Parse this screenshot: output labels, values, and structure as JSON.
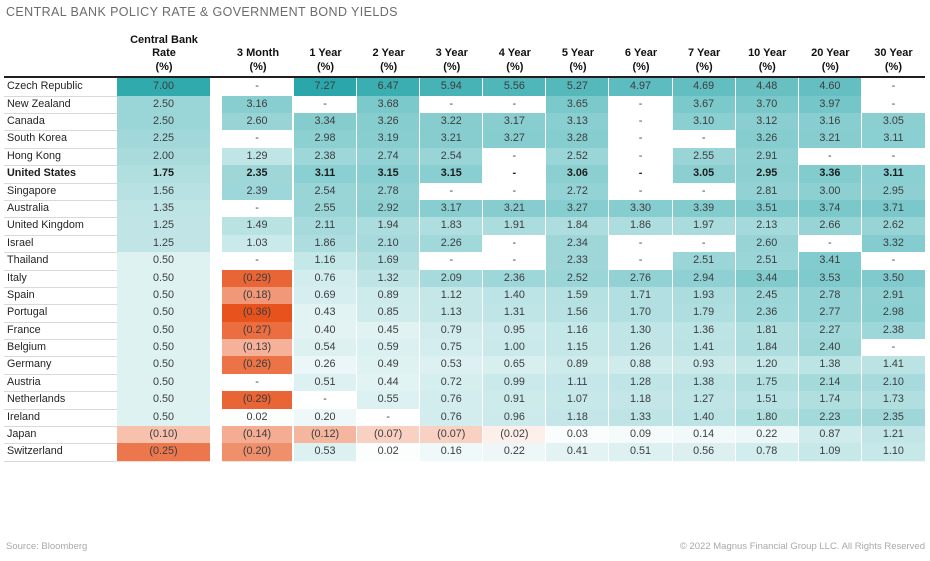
{
  "title": "CENTRAL BANK POLICY RATE & GOVERNMENT BOND YIELDS",
  "footer": {
    "source": "Source: Bloomberg",
    "copyright": "© 2022 Magnus Financial Group LLC. All Rights Reserved"
  },
  "colors": {
    "heat_positive": "#2aa7ab",
    "heat_negative": "#e8531d",
    "heat_empty": "#ffffff",
    "header_underline": "#221e1f",
    "row_line": "#d9d9d9",
    "title_text": "#6b6c6e",
    "footer_text": "#a7a9ac"
  },
  "chart_data": {
    "type": "heatmap",
    "title": "Central Bank Policy Rate & Government Bond Yields",
    "value_unit": "%",
    "negative_format": "parentheses",
    "empty_marker": "-",
    "columns": [
      "Central Bank\nRate\n(%)",
      "3 Month\n(%)",
      "1 Year\n(%)",
      "2 Year\n(%)",
      "3 Year\n(%)",
      "4 Year\n(%)",
      "5 Year\n(%)",
      "6 Year\n(%)",
      "7 Year\n(%)",
      "10 Year\n(%)",
      "20 Year\n(%)",
      "30 Year\n(%)"
    ],
    "rows": [
      {
        "country": "Czech Republic",
        "bold": false,
        "values": [
          7.0,
          null,
          7.27,
          6.47,
          5.94,
          5.56,
          5.27,
          4.97,
          4.69,
          4.48,
          4.6,
          null
        ]
      },
      {
        "country": "New Zealand",
        "bold": false,
        "values": [
          2.5,
          3.16,
          null,
          3.68,
          null,
          null,
          3.65,
          null,
          3.67,
          3.7,
          3.97,
          null
        ]
      },
      {
        "country": "Canada",
        "bold": false,
        "values": [
          2.5,
          2.6,
          3.34,
          3.26,
          3.22,
          3.17,
          3.13,
          null,
          3.1,
          3.12,
          3.16,
          3.05
        ]
      },
      {
        "country": "South Korea",
        "bold": false,
        "values": [
          2.25,
          null,
          2.98,
          3.19,
          3.21,
          3.27,
          3.28,
          null,
          null,
          3.26,
          3.21,
          3.11
        ]
      },
      {
        "country": "Hong Kong",
        "bold": false,
        "values": [
          2.0,
          1.29,
          2.38,
          2.74,
          2.54,
          null,
          2.52,
          null,
          2.55,
          2.91,
          null,
          null
        ]
      },
      {
        "country": "United States",
        "bold": true,
        "values": [
          1.75,
          2.35,
          3.11,
          3.15,
          3.15,
          null,
          3.06,
          null,
          3.05,
          2.95,
          3.36,
          3.11
        ]
      },
      {
        "country": "Singapore",
        "bold": false,
        "values": [
          1.56,
          2.39,
          2.54,
          2.78,
          null,
          null,
          2.72,
          null,
          null,
          2.81,
          3.0,
          2.95
        ]
      },
      {
        "country": "Australia",
        "bold": false,
        "values": [
          1.35,
          null,
          2.55,
          2.92,
          3.17,
          3.21,
          3.27,
          3.3,
          3.39,
          3.51,
          3.74,
          3.71
        ]
      },
      {
        "country": "United Kingdom",
        "bold": false,
        "values": [
          1.25,
          1.49,
          2.11,
          1.94,
          1.83,
          1.91,
          1.84,
          1.86,
          1.97,
          2.13,
          2.66,
          2.62
        ]
      },
      {
        "country": "Israel",
        "bold": false,
        "values": [
          1.25,
          1.03,
          1.86,
          2.1,
          2.26,
          null,
          2.34,
          null,
          null,
          2.6,
          null,
          3.32
        ]
      },
      {
        "country": "Thailand",
        "bold": false,
        "values": [
          0.5,
          null,
          1.16,
          1.69,
          null,
          null,
          2.33,
          null,
          2.51,
          2.51,
          3.41,
          null
        ]
      },
      {
        "country": "Italy",
        "bold": false,
        "values": [
          0.5,
          -0.29,
          0.76,
          1.32,
          2.09,
          2.36,
          2.52,
          2.76,
          2.94,
          3.44,
          3.53,
          3.5
        ]
      },
      {
        "country": "Spain",
        "bold": false,
        "values": [
          0.5,
          -0.18,
          0.69,
          0.89,
          1.12,
          1.4,
          1.59,
          1.71,
          1.93,
          2.45,
          2.78,
          2.91
        ]
      },
      {
        "country": "Portugal",
        "bold": false,
        "values": [
          0.5,
          -0.36,
          0.43,
          0.85,
          1.13,
          1.31,
          1.56,
          1.7,
          1.79,
          2.36,
          2.77,
          2.98
        ]
      },
      {
        "country": "France",
        "bold": false,
        "values": [
          0.5,
          -0.27,
          0.4,
          0.45,
          0.79,
          0.95,
          1.16,
          1.3,
          1.36,
          1.81,
          2.27,
          2.38
        ]
      },
      {
        "country": "Belgium",
        "bold": false,
        "values": [
          0.5,
          -0.13,
          0.54,
          0.59,
          0.75,
          1.0,
          1.15,
          1.26,
          1.41,
          1.84,
          2.4,
          null
        ]
      },
      {
        "country": "Germany",
        "bold": false,
        "values": [
          0.5,
          -0.26,
          0.26,
          0.49,
          0.53,
          0.65,
          0.89,
          0.88,
          0.93,
          1.2,
          1.38,
          1.41
        ]
      },
      {
        "country": "Austria",
        "bold": false,
        "values": [
          0.5,
          null,
          0.51,
          0.44,
          0.72,
          0.99,
          1.11,
          1.28,
          1.38,
          1.75,
          2.14,
          2.1
        ]
      },
      {
        "country": "Netherlands",
        "bold": false,
        "values": [
          0.5,
          -0.29,
          null,
          0.55,
          0.76,
          0.91,
          1.07,
          1.18,
          1.27,
          1.51,
          1.74,
          1.73
        ]
      },
      {
        "country": "Ireland",
        "bold": false,
        "values": [
          0.5,
          0.02,
          0.2,
          null,
          0.76,
          0.96,
          1.18,
          1.33,
          1.4,
          1.8,
          2.23,
          2.35
        ]
      },
      {
        "country": "Japan",
        "bold": false,
        "values": [
          -0.1,
          -0.14,
          -0.12,
          -0.07,
          -0.07,
          -0.02,
          0.03,
          0.09,
          0.14,
          0.22,
          0.87,
          1.21
        ]
      },
      {
        "country": "Switzerland",
        "bold": false,
        "values": [
          -0.25,
          -0.2,
          0.53,
          0.02,
          0.16,
          0.22,
          0.41,
          0.51,
          0.56,
          0.78,
          1.09,
          1.1
        ]
      }
    ]
  }
}
